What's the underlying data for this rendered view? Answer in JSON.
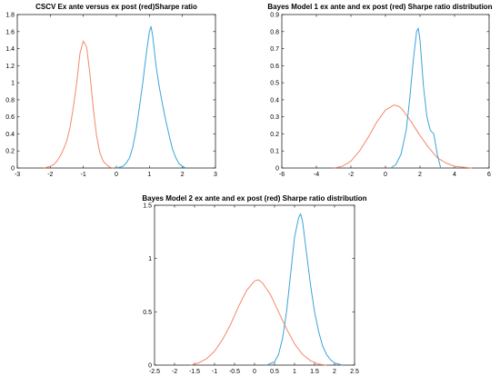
{
  "colors": {
    "ex_ante": "#3ba3d8",
    "ex_post": "#f3896a",
    "axes": "#262626"
  },
  "chart_data": [
    {
      "type": "line",
      "title": "CSCV Ex ante versus ex post (red)Sharpe ratio",
      "xlabel": "",
      "ylabel": "",
      "xlim": [
        -3,
        3
      ],
      "ylim": [
        0,
        1.8
      ],
      "xticks": [
        -3,
        -2,
        -1,
        0,
        1,
        2,
        3
      ],
      "yticks": [
        0,
        0.2,
        0.4,
        0.6,
        0.8,
        1,
        1.2,
        1.4,
        1.6,
        1.8
      ],
      "series": [
        {
          "color": "#f3896a",
          "x": [
            -2.2,
            -2.0,
            -1.9,
            -1.8,
            -1.7,
            -1.6,
            -1.5,
            -1.4,
            -1.3,
            -1.2,
            -1.1,
            -1.0,
            -0.9,
            -0.8,
            -0.7,
            -0.6,
            -0.5,
            -0.4,
            -0.3,
            -0.2,
            -0.1
          ],
          "y": [
            0.0,
            0.02,
            0.04,
            0.08,
            0.14,
            0.22,
            0.32,
            0.48,
            0.72,
            1.0,
            1.35,
            1.49,
            1.42,
            1.1,
            0.7,
            0.38,
            0.18,
            0.08,
            0.04,
            0.01,
            0.0
          ]
        },
        {
          "color": "#3ba3d8",
          "x": [
            0.0,
            0.2,
            0.3,
            0.4,
            0.5,
            0.6,
            0.7,
            0.8,
            0.9,
            1.0,
            1.05,
            1.1,
            1.2,
            1.3,
            1.4,
            1.5,
            1.6,
            1.7,
            1.8,
            1.9,
            2.0,
            2.1
          ],
          "y": [
            0.0,
            0.02,
            0.06,
            0.12,
            0.25,
            0.45,
            0.72,
            1.0,
            1.32,
            1.6,
            1.66,
            1.55,
            1.2,
            0.95,
            0.74,
            0.55,
            0.38,
            0.22,
            0.12,
            0.05,
            0.02,
            0.0
          ]
        }
      ]
    },
    {
      "type": "line",
      "title": "Bayes Model 1 ex ante and ex post (red) Sharpe ratio distribution",
      "xlabel": "",
      "ylabel": "",
      "xlim": [
        -6,
        6
      ],
      "ylim": [
        0,
        0.9
      ],
      "xticks": [
        -6,
        -4,
        -2,
        0,
        2,
        4,
        6
      ],
      "yticks": [
        0,
        0.1,
        0.2,
        0.3,
        0.4,
        0.5,
        0.6,
        0.7,
        0.8,
        0.9
      ],
      "series": [
        {
          "color": "#f3896a",
          "x": [
            -3.0,
            -2.5,
            -2.0,
            -1.5,
            -1.0,
            -0.5,
            0.0,
            0.5,
            0.8,
            1.0,
            1.5,
            2.0,
            2.5,
            3.0,
            3.5,
            4.0,
            4.5,
            5.0
          ],
          "y": [
            0.0,
            0.01,
            0.04,
            0.1,
            0.18,
            0.27,
            0.34,
            0.37,
            0.36,
            0.34,
            0.27,
            0.19,
            0.12,
            0.06,
            0.03,
            0.01,
            0.005,
            0.0
          ]
        },
        {
          "color": "#3ba3d8",
          "x": [
            0.3,
            0.6,
            0.9,
            1.2,
            1.4,
            1.6,
            1.8,
            1.9,
            2.0,
            2.2,
            2.4,
            2.6,
            2.8,
            3.0,
            3.2
          ],
          "y": [
            0.0,
            0.02,
            0.08,
            0.22,
            0.4,
            0.62,
            0.8,
            0.82,
            0.75,
            0.48,
            0.3,
            0.22,
            0.2,
            0.08,
            0.0
          ]
        }
      ]
    },
    {
      "type": "line",
      "title": "Bayes Model 2 ex ante and ex post (red) Sharpe ratio distribution",
      "xlabel": "",
      "ylabel": "",
      "xlim": [
        -2.5,
        2.5
      ],
      "ylim": [
        0,
        1.5
      ],
      "xticks": [
        -2.5,
        -2,
        -1.5,
        -1,
        -0.5,
        0,
        0.5,
        1,
        1.5,
        2,
        2.5
      ],
      "yticks": [
        0,
        0.5,
        1,
        1.5
      ],
      "series": [
        {
          "color": "#f3896a",
          "x": [
            -1.6,
            -1.4,
            -1.2,
            -1.0,
            -0.8,
            -0.6,
            -0.4,
            -0.2,
            0.0,
            0.1,
            0.2,
            0.4,
            0.6,
            0.8,
            1.0,
            1.2,
            1.4,
            1.6,
            1.8
          ],
          "y": [
            0.0,
            0.02,
            0.06,
            0.13,
            0.24,
            0.38,
            0.55,
            0.7,
            0.79,
            0.8,
            0.77,
            0.66,
            0.5,
            0.34,
            0.2,
            0.1,
            0.04,
            0.01,
            0.0
          ]
        },
        {
          "color": "#3ba3d8",
          "x": [
            0.3,
            0.5,
            0.6,
            0.7,
            0.8,
            0.9,
            1.0,
            1.1,
            1.15,
            1.2,
            1.3,
            1.4,
            1.5,
            1.6,
            1.7,
            1.8,
            1.9,
            2.0,
            2.2
          ],
          "y": [
            0.0,
            0.03,
            0.1,
            0.25,
            0.5,
            0.85,
            1.2,
            1.38,
            1.42,
            1.35,
            1.05,
            0.75,
            0.5,
            0.32,
            0.18,
            0.1,
            0.05,
            0.02,
            0.0
          ]
        }
      ]
    }
  ]
}
